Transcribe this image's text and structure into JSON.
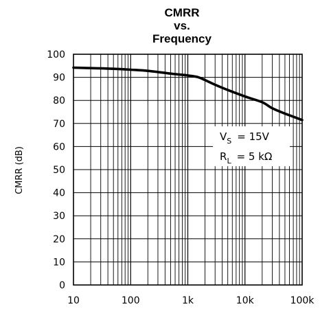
{
  "chart_data": {
    "type": "line",
    "title_lines": [
      "CMRR",
      "vs.",
      "Frequency"
    ],
    "xlabel": "",
    "ylabel": "CMRR (dB)",
    "x_scale": "log",
    "xlim": [
      10,
      100000
    ],
    "ylim": [
      0,
      100
    ],
    "x_ticks": [
      10,
      100,
      1000,
      10000,
      100000
    ],
    "x_tick_labels": [
      "10",
      "100",
      "1k",
      "10k",
      "100k"
    ],
    "y_ticks": [
      0,
      10,
      20,
      30,
      40,
      50,
      60,
      70,
      80,
      90,
      100
    ],
    "y_tick_labels": [
      "0",
      "10",
      "20",
      "30",
      "40",
      "50",
      "60",
      "70",
      "80",
      "90",
      "100"
    ],
    "grid": true,
    "series": [
      {
        "x": [
          10,
          20,
          50,
          100,
          200,
          500,
          1000,
          1500,
          2000,
          3000,
          5000,
          10000,
          20000,
          30000,
          50000,
          100000
        ],
        "y": [
          94.2,
          94.0,
          93.7,
          93.3,
          92.8,
          91.6,
          90.8,
          90.1,
          88.8,
          86.8,
          84.5,
          81.7,
          79.2,
          76.6,
          74.3,
          71.5
        ],
        "color": "#000000"
      }
    ],
    "annotation": {
      "vs_main": "V",
      "vs_sub": "S",
      "vs_value": "=  15V",
      "rl_main": "R",
      "rl_sub": "L",
      "rl_value": "=  5 kΩ"
    }
  }
}
